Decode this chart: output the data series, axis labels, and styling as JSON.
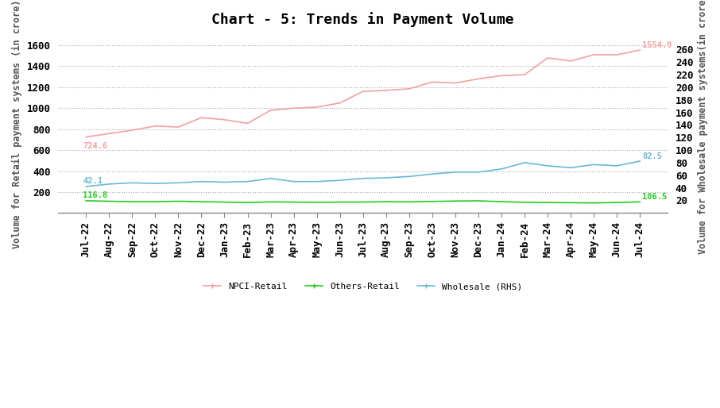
{
  "title": "Chart - 5: Trends in Payment Volume",
  "ylabel_left": "Volume for Retail payment systems (in crore)",
  "ylabel_right": "Volume for Wholesale payment systems(in crore)",
  "categories": [
    "Jul-22",
    "Aug-22",
    "Sep-22",
    "Oct-22",
    "Nov-22",
    "Dec-22",
    "Jan-23",
    "Feb-23",
    "Mar-23",
    "Apr-23",
    "May-23",
    "Jun-23",
    "Jul-23",
    "Aug-23",
    "Sep-23",
    "Oct-23",
    "Nov-23",
    "Dec-23",
    "Jan-24",
    "Feb-24",
    "Mar-24",
    "Apr-24",
    "May-24",
    "Jun-24",
    "Jul-24"
  ],
  "npci_retail": [
    724.6,
    758,
    790,
    830,
    820,
    910,
    890,
    855,
    980,
    1000,
    1010,
    1050,
    1160,
    1170,
    1185,
    1250,
    1240,
    1280,
    1310,
    1320,
    1480,
    1450,
    1510,
    1510,
    1554.9
  ],
  "others_retail": [
    116.8,
    112,
    108,
    108,
    112,
    108,
    104,
    100,
    106,
    104,
    102,
    104,
    104,
    108,
    106,
    110,
    114,
    116,
    108,
    102,
    100,
    98,
    96,
    100,
    106.5
  ],
  "wholesale_rhs": [
    42.1,
    46,
    48,
    47,
    48,
    50,
    49,
    50,
    55,
    50,
    50,
    52,
    55,
    56,
    58,
    62,
    65,
    65,
    70,
    80,
    75,
    72,
    77,
    75,
    82.5
  ],
  "npci_color": "#F4A0A0",
  "others_color": "#22CC22",
  "wholesale_color": "#6BB8D4",
  "ylim_left": [
    0,
    1700
  ],
  "ylim_right": [
    0,
    283.33
  ],
  "yticks_left": [
    200,
    400,
    600,
    800,
    1000,
    1200,
    1400,
    1600
  ],
  "yticks_right": [
    20,
    40,
    60,
    80,
    100,
    120,
    140,
    160,
    180,
    200,
    220,
    240,
    260
  ],
  "npci_first_label": "724.6",
  "npci_last_label": "1554.9",
  "others_first_label": "116.8",
  "others_last_label": "106.5",
  "wholesale_first_label": "42.1",
  "wholesale_last_label": "82.5",
  "bg_color": "#FFFFFF",
  "grid_color": "#AAAAAA",
  "title_fontsize": 13,
  "axis_label_fontsize": 8.5,
  "tick_fontsize": 9,
  "legend_fontsize": 8,
  "annotation_fontsize": 7.5
}
